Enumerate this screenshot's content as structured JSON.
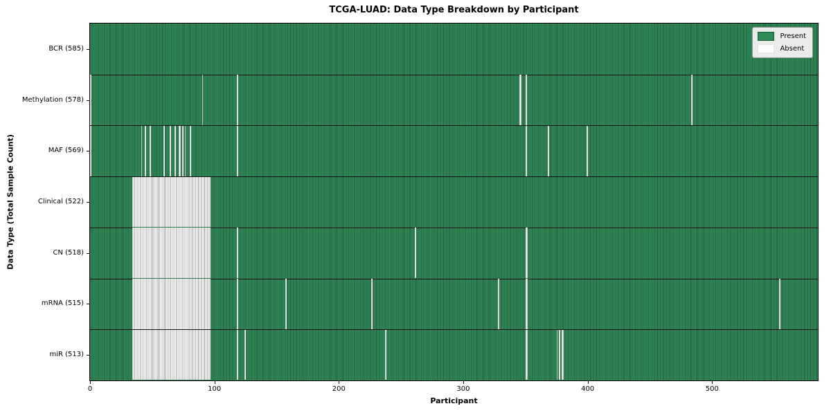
{
  "chart_data": {
    "type": "heatmap",
    "title": "TCGA-LUAD: Data Type Breakdown by Participant",
    "xlabel": "Participant",
    "ylabel": "Data Type (Total Sample Count)",
    "n_participants": 585,
    "x_ticks": [
      0,
      100,
      200,
      300,
      400,
      500
    ],
    "grid": false,
    "legend_position": "upper right",
    "legend": [
      {
        "label": "Present",
        "color": "#2e8b57"
      },
      {
        "label": "Absent",
        "color": "#ffffff"
      }
    ],
    "colors": {
      "present_fill": "#318a58",
      "present_edge": "#1f5c39",
      "absent_fill": "#fbfbfb",
      "absent_edge": "#9e9e9e",
      "axis": "#000000"
    },
    "rows": [
      {
        "label": "BCR (585)",
        "data_type": "BCR",
        "present_count": 585,
        "absent_runs": []
      },
      {
        "label": "Methylation (578)",
        "data_type": "Methylation",
        "present_count": 578,
        "absent_runs": [
          [
            0,
            1
          ],
          [
            90,
            1
          ],
          [
            118,
            1
          ],
          [
            345,
            2
          ],
          [
            350,
            1
          ],
          [
            483,
            1
          ]
        ]
      },
      {
        "label": "MAF (569)",
        "data_type": "MAF",
        "present_count": 569,
        "absent_runs": [
          [
            0,
            1
          ],
          [
            41,
            1
          ],
          [
            44,
            1
          ],
          [
            48,
            1
          ],
          [
            59,
            1
          ],
          [
            64,
            1
          ],
          [
            68,
            1
          ],
          [
            71,
            2
          ],
          [
            74,
            1
          ],
          [
            76,
            1
          ],
          [
            80,
            1
          ],
          [
            118,
            1
          ],
          [
            350,
            1
          ],
          [
            368,
            1
          ],
          [
            399,
            1
          ]
        ]
      },
      {
        "label": "Clinical (522)",
        "data_type": "Clinical",
        "present_count": 522,
        "absent_runs": [
          [
            34,
            63
          ]
        ]
      },
      {
        "label": "CN (518)",
        "data_type": "CN",
        "present_count": 518,
        "absent_runs": [
          [
            34,
            63
          ],
          [
            118,
            1
          ],
          [
            261,
            1
          ],
          [
            350,
            2
          ]
        ]
      },
      {
        "label": "mRNA (515)",
        "data_type": "mRNA",
        "present_count": 515,
        "absent_runs": [
          [
            34,
            63
          ],
          [
            118,
            1
          ],
          [
            157,
            1
          ],
          [
            226,
            1
          ],
          [
            328,
            1
          ],
          [
            350,
            2
          ],
          [
            554,
            1
          ]
        ]
      },
      {
        "label": "miR (513)",
        "data_type": "miR",
        "present_count": 513,
        "absent_runs": [
          [
            34,
            63
          ],
          [
            118,
            1
          ],
          [
            124,
            1
          ],
          [
            237,
            1
          ],
          [
            350,
            2
          ],
          [
            375,
            1
          ],
          [
            377,
            1
          ],
          [
            379,
            2
          ]
        ]
      }
    ]
  }
}
